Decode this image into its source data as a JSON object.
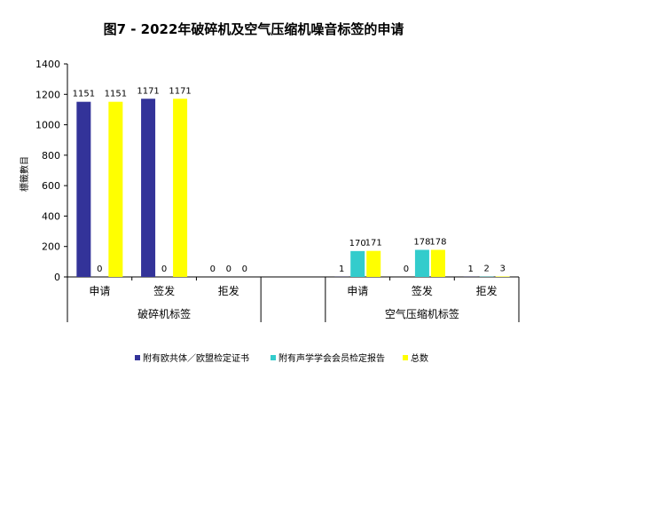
{
  "chart_data": {
    "type": "bar",
    "title": "图7 - 2022年破碎机及空气压缩机噪音标签的申请",
    "ylabel": "標籤數目",
    "xlabel": "",
    "ylim": [
      0,
      1400
    ],
    "yticks": [
      0,
      200,
      400,
      600,
      800,
      1000,
      1200,
      1400
    ],
    "groups": [
      {
        "name": "破碎机标签",
        "categories": [
          "申请",
          "签发",
          "拒发"
        ]
      },
      {
        "name": "空气压缩机标签",
        "categories": [
          "申请",
          "签发",
          "拒发"
        ]
      }
    ],
    "series": [
      {
        "name": "附有欧共体／欧盟检定证书",
        "color": "#333399",
        "values": [
          1151,
          1171,
          0,
          1,
          0,
          1
        ]
      },
      {
        "name": "附有声学学会会员检定报告",
        "color": "#33CCCC",
        "values": [
          0,
          0,
          0,
          170,
          178,
          2
        ]
      },
      {
        "name": "总数",
        "color": "#FFFF00",
        "values": [
          1151,
          1171,
          0,
          171,
          178,
          3
        ]
      }
    ],
    "legend_position": "bottom",
    "grid": false
  }
}
